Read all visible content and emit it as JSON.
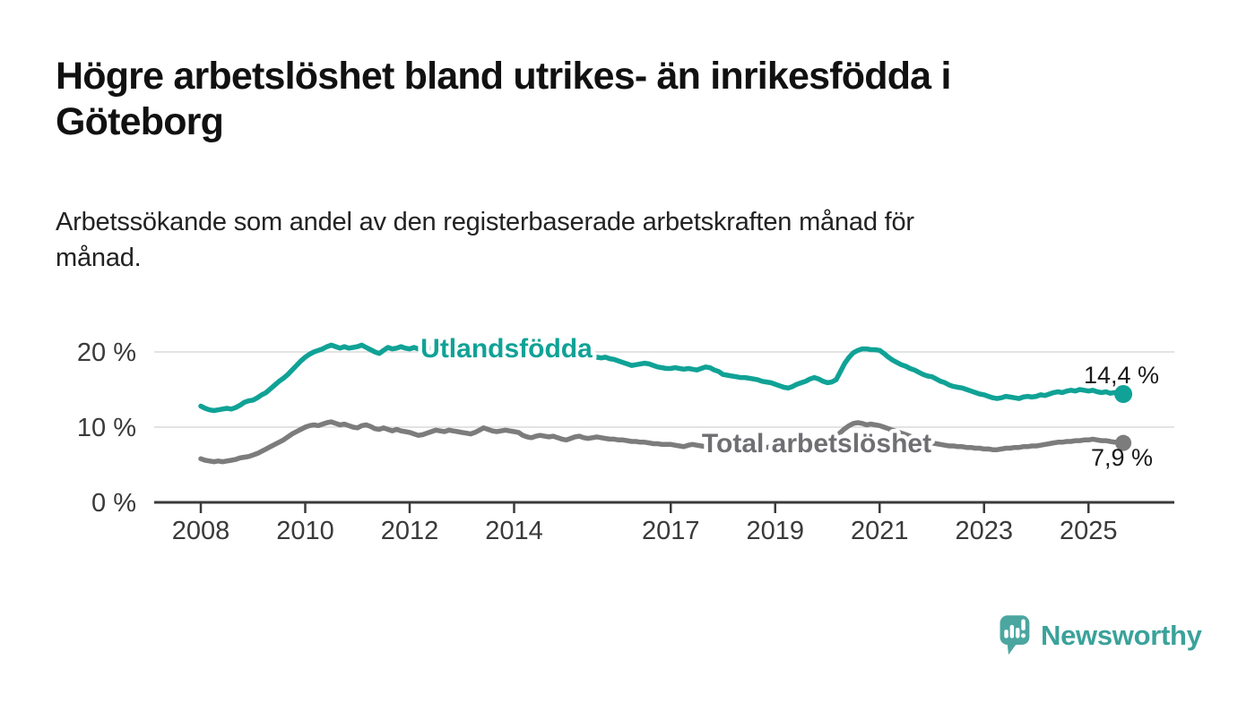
{
  "header": {
    "title_lines": [
      "Högre arbetslöshet bland utrikes- än inrikesfödda i",
      "Göteborg"
    ],
    "subtitle_lines": [
      "Arbetssökande som andel av den registerbaserade arbetskraften månad för",
      "månad."
    ]
  },
  "chart_data": {
    "type": "line",
    "title": "Högre arbetslöshet bland utrikes- än inrikesfödda i Göteborg",
    "subtitle": "Arbetssökande som andel av den registerbaserade arbetskraften månad för månad.",
    "x_unit": "month",
    "x_start_year": 2008,
    "x_end_label": "sep 2025",
    "xlim": [
      2007.1,
      2026.6
    ],
    "ylim": [
      0,
      23
    ],
    "grid": "horizontal",
    "yticks": [
      {
        "value": 0,
        "label": "0 %"
      },
      {
        "value": 10,
        "label": "10 %"
      },
      {
        "value": 20,
        "label": "20 %"
      }
    ],
    "xticks": [
      {
        "value": 2008,
        "label": "2008"
      },
      {
        "value": 2010,
        "label": "2010"
      },
      {
        "value": 2012,
        "label": "2012"
      },
      {
        "value": 2014,
        "label": "2014"
      },
      {
        "value": 2017,
        "label": "2017"
      },
      {
        "value": 2019,
        "label": "2019"
      },
      {
        "value": 2021,
        "label": "2021"
      },
      {
        "value": 2023,
        "label": "2023"
      },
      {
        "value": 2025,
        "label": "2025"
      }
    ],
    "series": [
      {
        "name": "Utlandsfödda",
        "color": "#10a296",
        "end_value_label": "14,4 %",
        "end_value": 14.4,
        "values": [
          12.8,
          12.5,
          12.3,
          12.2,
          12.3,
          12.4,
          12.5,
          12.4,
          12.6,
          12.9,
          13.3,
          13.5,
          13.6,
          13.9,
          14.3,
          14.6,
          15.1,
          15.6,
          16.1,
          16.5,
          17.0,
          17.6,
          18.2,
          18.8,
          19.3,
          19.7,
          20.0,
          20.2,
          20.4,
          20.7,
          20.9,
          20.7,
          20.5,
          20.7,
          20.5,
          20.6,
          20.7,
          20.9,
          20.6,
          20.3,
          20.0,
          19.8,
          20.2,
          20.6,
          20.4,
          20.5,
          20.7,
          20.5,
          20.4,
          20.6,
          20.4,
          20.2,
          20.3,
          20.5,
          20.6,
          20.4,
          20.3,
          20.5,
          20.4,
          20.3,
          20.2,
          20.0,
          20.1,
          20.3,
          20.2,
          20.0,
          20.1,
          20.2,
          20.0,
          19.9,
          20.0,
          19.9,
          19.8,
          19.9,
          19.7,
          19.8,
          19.9,
          19.7,
          19.6,
          19.7,
          19.8,
          19.6,
          19.5,
          19.6,
          19.5,
          19.6,
          19.4,
          19.5,
          19.3,
          19.4,
          19.5,
          19.3,
          19.2,
          19.3,
          19.1,
          19.0,
          18.8,
          18.6,
          18.4,
          18.2,
          18.3,
          18.4,
          18.5,
          18.4,
          18.2,
          18.0,
          17.9,
          17.8,
          17.8,
          17.9,
          17.8,
          17.7,
          17.8,
          17.7,
          17.6,
          17.8,
          18.0,
          17.9,
          17.6,
          17.4,
          17.0,
          16.9,
          16.8,
          16.7,
          16.6,
          16.6,
          16.5,
          16.4,
          16.3,
          16.1,
          16.0,
          15.9,
          15.7,
          15.5,
          15.3,
          15.2,
          15.4,
          15.7,
          15.9,
          16.1,
          16.4,
          16.6,
          16.4,
          16.1,
          15.9,
          16.0,
          16.3,
          17.4,
          18.5,
          19.3,
          19.9,
          20.2,
          20.4,
          20.4,
          20.3,
          20.3,
          20.2,
          19.8,
          19.3,
          18.9,
          18.6,
          18.3,
          18.1,
          17.8,
          17.6,
          17.3,
          17.0,
          16.8,
          16.7,
          16.4,
          16.1,
          15.9,
          15.6,
          15.4,
          15.3,
          15.2,
          15.0,
          14.8,
          14.6,
          14.4,
          14.3,
          14.1,
          13.9,
          13.8,
          13.9,
          14.1,
          14.0,
          13.9,
          13.8,
          14.0,
          14.1,
          14.0,
          14.1,
          14.3,
          14.2,
          14.4,
          14.6,
          14.7,
          14.6,
          14.8,
          14.9,
          14.8,
          15.0,
          14.9,
          14.8,
          14.9,
          14.7,
          14.6,
          14.7,
          14.5,
          14.6,
          14.5,
          14.4
        ]
      },
      {
        "name": "Total arbetslöshet",
        "color": "#7c7c7c",
        "label_color": "#6f6f73",
        "end_value_label": "7,9 %",
        "end_value": 7.9,
        "values": [
          5.8,
          5.6,
          5.5,
          5.4,
          5.5,
          5.4,
          5.5,
          5.6,
          5.7,
          5.9,
          6.0,
          6.1,
          6.3,
          6.5,
          6.8,
          7.1,
          7.4,
          7.7,
          8.0,
          8.3,
          8.7,
          9.1,
          9.4,
          9.7,
          10.0,
          10.2,
          10.3,
          10.2,
          10.4,
          10.6,
          10.7,
          10.5,
          10.3,
          10.4,
          10.2,
          10.0,
          9.9,
          10.2,
          10.3,
          10.1,
          9.8,
          9.7,
          9.9,
          9.7,
          9.5,
          9.7,
          9.5,
          9.4,
          9.3,
          9.1,
          8.9,
          9.0,
          9.2,
          9.4,
          9.6,
          9.5,
          9.4,
          9.6,
          9.5,
          9.4,
          9.3,
          9.2,
          9.1,
          9.3,
          9.6,
          9.9,
          9.7,
          9.5,
          9.4,
          9.5,
          9.6,
          9.5,
          9.4,
          9.3,
          8.9,
          8.7,
          8.6,
          8.8,
          8.9,
          8.8,
          8.7,
          8.8,
          8.6,
          8.4,
          8.3,
          8.5,
          8.7,
          8.8,
          8.6,
          8.5,
          8.6,
          8.7,
          8.6,
          8.5,
          8.4,
          8.4,
          8.3,
          8.3,
          8.2,
          8.1,
          8.1,
          8.0,
          8.0,
          7.9,
          7.8,
          7.8,
          7.7,
          7.7,
          7.7,
          7.6,
          7.5,
          7.4,
          7.6,
          7.7,
          7.6,
          7.5,
          7.4,
          7.4,
          7.3,
          7.3,
          7.3,
          7.2,
          7.2,
          7.1,
          7.1,
          7.2,
          7.2,
          7.1,
          7.1,
          7.2,
          7.3,
          7.4,
          7.4,
          7.5,
          7.5,
          7.6,
          7.6,
          7.7,
          7.8,
          7.9,
          8.0,
          8.1,
          8.1,
          8.2,
          8.3,
          8.4,
          8.7,
          9.3,
          9.8,
          10.2,
          10.5,
          10.6,
          10.5,
          10.3,
          10.4,
          10.3,
          10.2,
          10.0,
          9.8,
          9.6,
          9.4,
          9.2,
          9.0,
          8.8,
          8.6,
          8.4,
          8.2,
          8.0,
          7.9,
          7.8,
          7.7,
          7.6,
          7.5,
          7.5,
          7.4,
          7.4,
          7.3,
          7.3,
          7.2,
          7.2,
          7.1,
          7.1,
          7.0,
          7.0,
          7.1,
          7.2,
          7.2,
          7.3,
          7.3,
          7.4,
          7.4,
          7.5,
          7.5,
          7.6,
          7.7,
          7.8,
          7.9,
          8.0,
          8.0,
          8.1,
          8.1,
          8.2,
          8.2,
          8.3,
          8.3,
          8.4,
          8.3,
          8.2,
          8.2,
          8.1,
          8.0,
          8.0,
          7.9
        ]
      }
    ],
    "colors": {
      "accent_teal": "#10a296",
      "line_gray": "#7c7c7c",
      "grid": "#dadada",
      "axis": "#3a3a3a",
      "value_label": "#1a1a1a"
    }
  },
  "footer": {
    "brand": "Newsworthy",
    "brand_color": "#3aa29a",
    "icon_color": "#4ba6a0"
  }
}
